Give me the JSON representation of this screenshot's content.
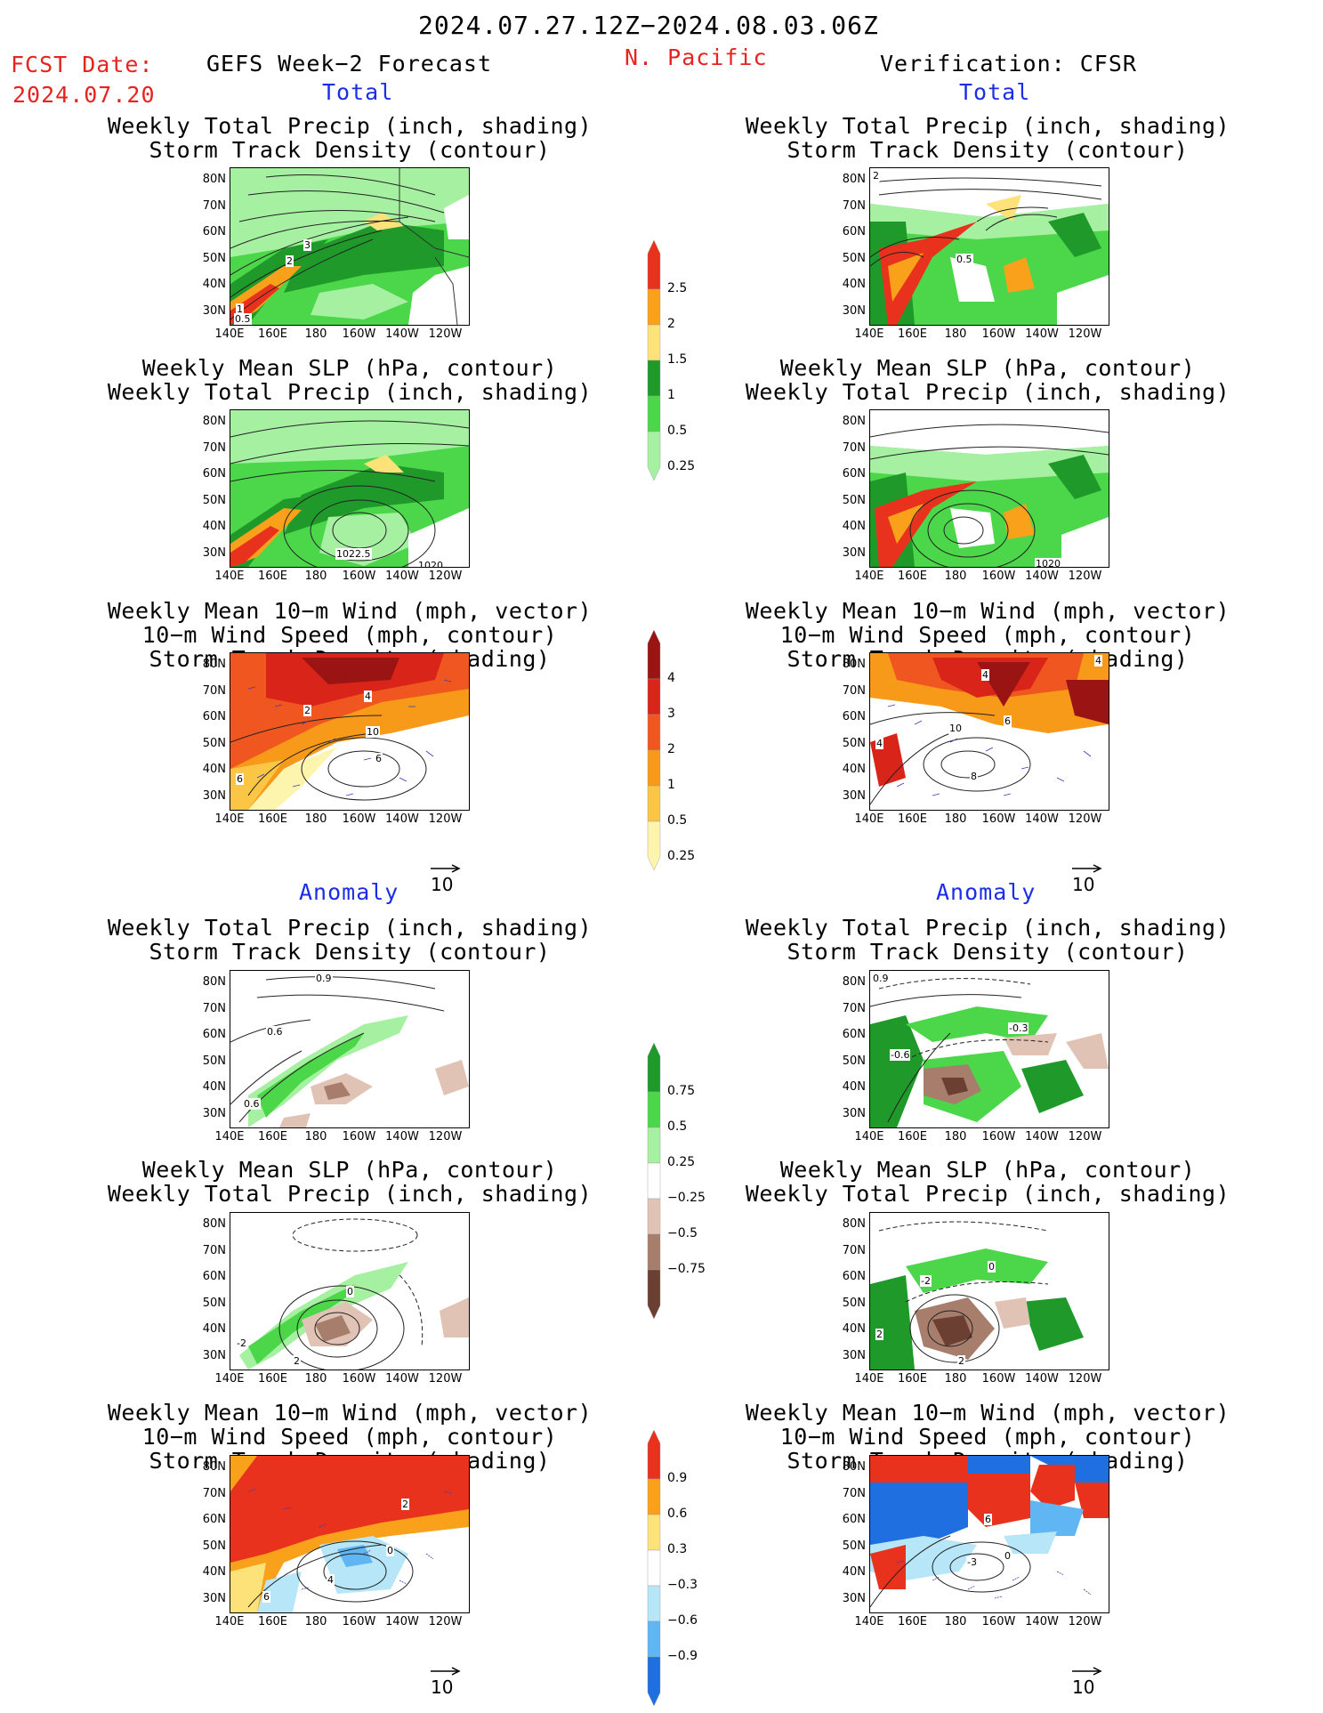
{
  "header": {
    "period": "2024.07.27.12Z−2024.08.03.06Z",
    "region": "N. Pacific",
    "fcst_label": "FCST Date:",
    "fcst_date": "2024.07.20",
    "left_title": "GEFS Week−2 Forecast",
    "right_title": "Verification: CFSR"
  },
  "sections": {
    "total": "Total",
    "anomaly": "Anomaly"
  },
  "panel_titles": {
    "precip_std": [
      "Weekly Total Precip (inch, shading)",
      "Storm Track Density (contour)"
    ],
    "slp_precip": [
      "Weekly Mean SLP (hPa, contour)",
      "Weekly Total Precip (inch, shading)"
    ],
    "wind": [
      "Weekly Mean 10−m Wind (mph, vector)",
      "10−m Wind Speed (mph, contour)",
      "Storm Track Density (shading)"
    ]
  },
  "axes": {
    "lat_labels": [
      "80N",
      "70N",
      "60N",
      "50N",
      "40N",
      "30N"
    ],
    "lon_labels": [
      "140E",
      "160E",
      "180",
      "160W",
      "140W",
      "120W"
    ]
  },
  "vector_ref": "10",
  "colorbars": {
    "precip_total": {
      "labels": [
        "2.5",
        "2",
        "1.5",
        "1",
        "0.5",
        "0.25"
      ],
      "colors": [
        "#e8321e",
        "#f9a11b",
        "#fde27a",
        "#1f9a2a",
        "#4cd64a",
        "#a6f0a2"
      ]
    },
    "std_total": {
      "labels": [
        "4",
        "3",
        "2",
        "1",
        "0.5",
        "0.25"
      ],
      "colors": [
        "#9a1414",
        "#d92419",
        "#f0561f",
        "#f79a1a",
        "#fbc646",
        "#fdf5ad"
      ]
    },
    "precip_anom": {
      "labels": [
        "0.75",
        "0.5",
        "0.25",
        "−0.25",
        "−0.5",
        "−0.75"
      ],
      "colors": [
        "#1f9a2a",
        "#4cd64a",
        "#a6f0a2",
        "#ffffff",
        "#e1c3b6",
        "#a77d6b",
        "#6b4032"
      ]
    },
    "std_anom": {
      "labels": [
        "0.9",
        "0.6",
        "0.3",
        "−0.3",
        "−0.6",
        "−0.9"
      ],
      "colors": [
        "#e8321e",
        "#f9a11b",
        "#fde27a",
        "#ffffff",
        "#b6e6f7",
        "#5fb6f2",
        "#1f6fe0"
      ]
    }
  },
  "contour_labels": {
    "p1": [
      "3",
      "2",
      "1",
      "0.5"
    ],
    "p2": [
      "0.5",
      "2"
    ],
    "p3": [
      "1022.5",
      "1020"
    ],
    "p4": [
      "1020"
    ],
    "p5": [
      "2",
      "4",
      "6",
      "10",
      "6"
    ],
    "p6": [
      "4",
      "4",
      "10",
      "8",
      "6",
      "4"
    ],
    "p7": [
      "0.9",
      "0.6",
      "0.6"
    ],
    "p8": [
      "0.9",
      "-0.3",
      "-0.6"
    ],
    "p9": [
      "0",
      "-2",
      "2"
    ],
    "p10": [
      "-2",
      "2",
      "0",
      "2"
    ],
    "p11": [
      "2",
      "6",
      "4",
      "0"
    ],
    "p12": [
      "6",
      "-3",
      "0"
    ]
  }
}
